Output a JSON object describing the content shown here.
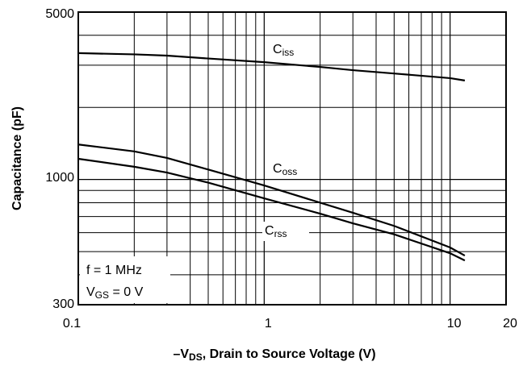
{
  "chart_data": {
    "type": "line",
    "xlabel": {
      "prefix": "–V",
      "sub": "DS",
      "suffix": ", Drain to Source Voltage (V)"
    },
    "ylabel": "Capacitance (pF)",
    "x": [
      0.1,
      0.2,
      0.3,
      0.5,
      1,
      2,
      3,
      5,
      10,
      12
    ],
    "series": [
      {
        "name": {
          "main": "C",
          "sub": "iss"
        },
        "color": "#000000",
        "values": [
          3370,
          3330,
          3290,
          3200,
          3090,
          2950,
          2860,
          2770,
          2650,
          2590
        ]
      },
      {
        "name": {
          "main": "C",
          "sub": "oss"
        },
        "color": "#000000",
        "values": [
          1400,
          1310,
          1230,
          1100,
          944,
          800,
          726,
          640,
          520,
          481
        ]
      },
      {
        "name": {
          "main": "C",
          "sub": "rss"
        },
        "color": "#000000",
        "values": [
          1220,
          1130,
          1069,
          970,
          834,
          720,
          656,
          590,
          492,
          459
        ]
      }
    ],
    "xlim": [
      0.1,
      20
    ],
    "ylim": [
      300,
      5000
    ],
    "xticks": [
      0.1,
      1,
      10,
      20
    ],
    "yticks": [
      300,
      1000,
      5000
    ],
    "xgrid_minor": [
      0.2,
      0.3,
      0.4,
      0.5,
      0.6,
      0.7,
      0.8,
      0.9,
      2,
      3,
      4,
      5,
      6,
      7,
      8,
      9
    ],
    "ygrid_minor": [
      400,
      500,
      600,
      700,
      800,
      900,
      2000,
      3000,
      4000
    ],
    "log_x": true,
    "log_y": true,
    "grid": true,
    "conditions": [
      "f = 1 MHz",
      {
        "main": "V",
        "sub": "GS",
        "suffix": " = 0 V"
      }
    ]
  }
}
